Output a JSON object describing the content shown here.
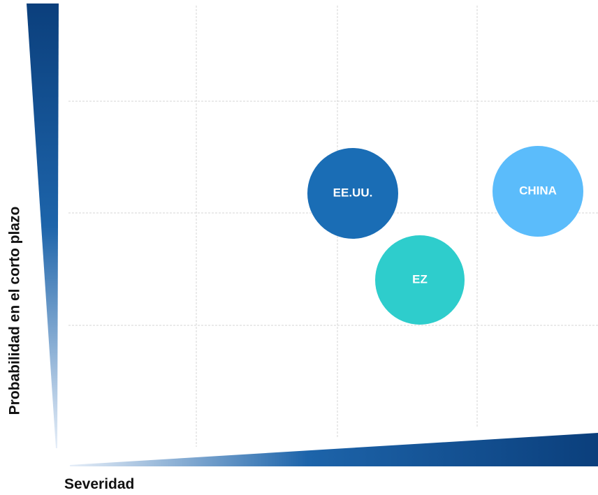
{
  "axes": {
    "y_label": "Probabilidad en el corto plazo",
    "x_label": "Severidad"
  },
  "nodes": [
    {
      "label": "EE.UU."
    },
    {
      "label": "CHINA"
    },
    {
      "label": "EZ"
    }
  ]
}
